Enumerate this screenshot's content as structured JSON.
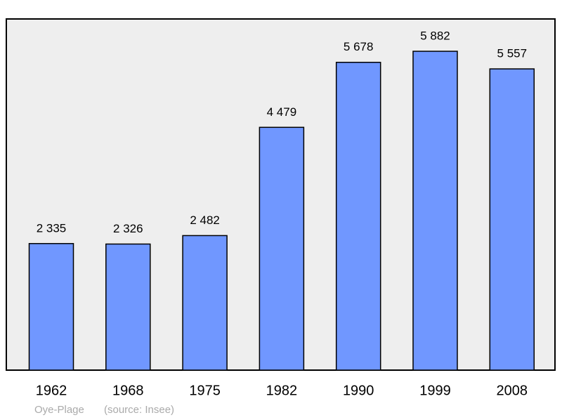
{
  "chart_data": {
    "type": "bar",
    "categories": [
      "1962",
      "1968",
      "1975",
      "1982",
      "1990",
      "1999",
      "2008"
    ],
    "values": [
      2335,
      2326,
      2482,
      4479,
      5678,
      5882,
      5557
    ],
    "value_labels": [
      "2 335",
      "2 326",
      "2 482",
      "4 479",
      "5 678",
      "5 882",
      "5 557"
    ],
    "color": "#7097ff",
    "caption": "Oye-Plage",
    "source": "(source: Insee)"
  }
}
